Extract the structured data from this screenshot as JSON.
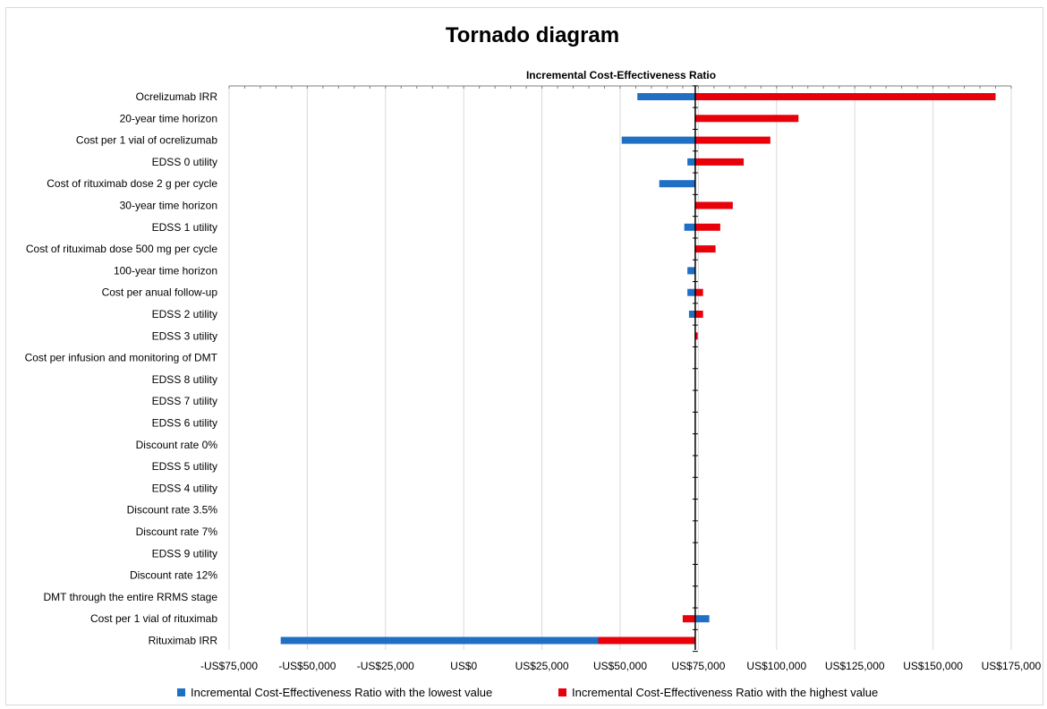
{
  "chart_data": {
    "type": "bar",
    "orientation": "horizontal",
    "title": "Tornado diagram",
    "axis_title": "Incremental Cost-Effectiveness Ratio",
    "base_value": 74000,
    "xlim": [
      -75000,
      175000
    ],
    "x_ticks": [
      -75000,
      -50000,
      -25000,
      0,
      25000,
      50000,
      75000,
      100000,
      125000,
      150000,
      175000
    ],
    "x_tick_labels": [
      "-US$75,000",
      "-US$50,000",
      "-US$25,000",
      "US$0",
      "US$25,000",
      "US$50,000",
      "US$75,000",
      "US$100,000",
      "US$125,000",
      "US$150,000",
      "US$175,000"
    ],
    "grid": "vertical",
    "legend_position": "bottom",
    "categories": [
      "Ocrelizumab IRR",
      "20-year time horizon",
      "Cost per 1 vial of ocrelizumab",
      "EDSS 0 utility",
      "Cost of rituximab dose 2 g per cycle",
      "30-year time horizon",
      "EDSS 1 utility",
      "Cost of rituximab dose 500 mg per cycle",
      "100-year time horizon",
      "Cost per anual follow-up",
      "EDSS 2 utility",
      "EDSS 3 utility",
      "Cost per infusion and monitoring of DMT",
      "EDSS 8 utility",
      "EDSS 7 utility",
      "EDSS 6 utility",
      "Discount rate 0%",
      "EDSS 5 utility",
      "EDSS 4 utility",
      "Discount rate 3.5%",
      "Discount rate 7%",
      "EDSS 9 utility",
      "Discount rate 12%",
      "DMT through the entire RRMS stage",
      "Cost per 1 vial of rituximab",
      "Rituximab IRR"
    ],
    "series": [
      {
        "name": "Incremental Cost-Effectiveness Ratio with the lowest value",
        "color": "#1F6FC5",
        "values": [
          55500,
          74000,
          50500,
          71500,
          62500,
          74000,
          70500,
          74000,
          71500,
          71500,
          72000,
          74000,
          74000,
          74000,
          74000,
          74000,
          74000,
          74000,
          74000,
          74000,
          74000,
          74000,
          74000,
          74000,
          78500,
          -58500
        ]
      },
      {
        "name": "Incremental Cost-Effectiveness Ratio with the highest value",
        "color": "#E8000B",
        "values": [
          170000,
          107000,
          98000,
          89500,
          74000,
          86000,
          82000,
          80500,
          74000,
          76500,
          76500,
          74800,
          74000,
          74000,
          74000,
          74000,
          74000,
          74000,
          74000,
          74000,
          74000,
          74000,
          74000,
          74000,
          70000,
          43000
        ]
      }
    ]
  }
}
